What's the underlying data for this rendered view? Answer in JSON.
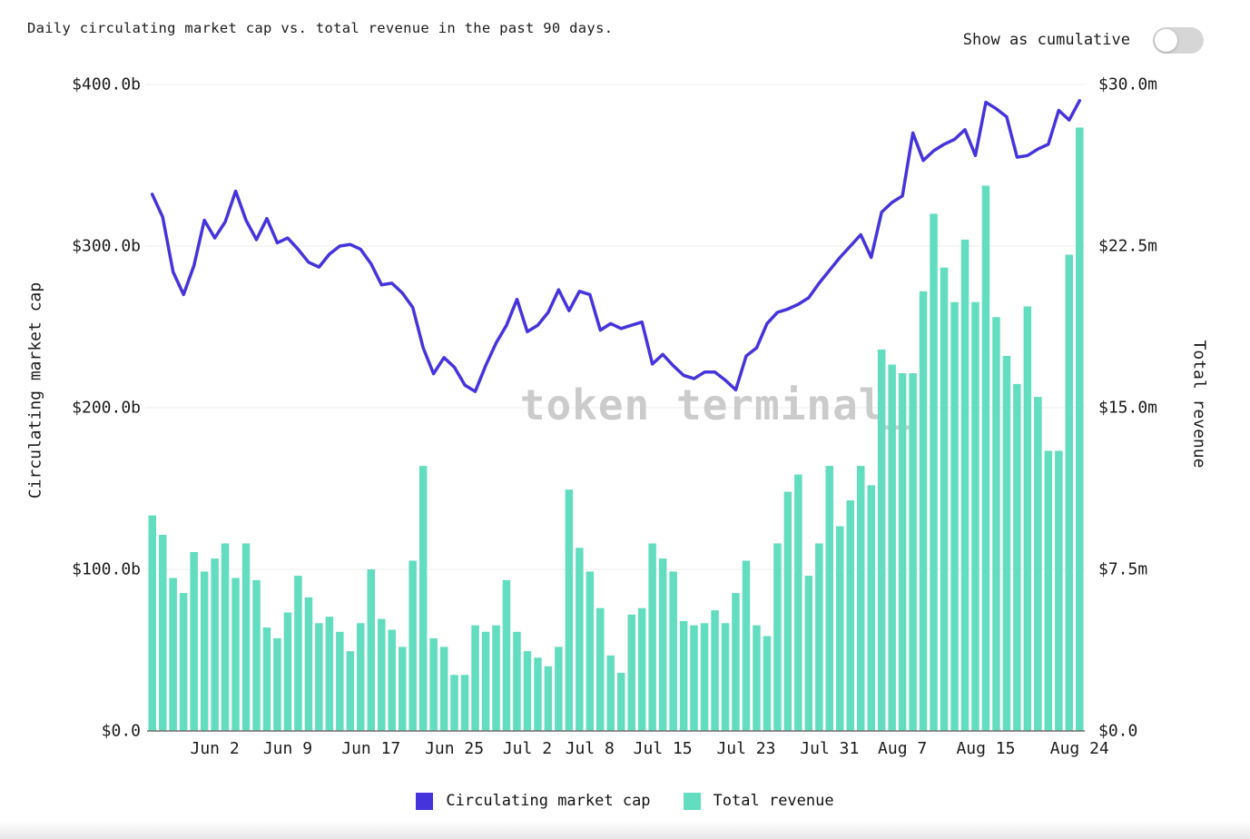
{
  "header": {
    "title": "Daily circulating market cap vs. total revenue in the past 90 days.",
    "toggle": {
      "label": "Show as cumulative",
      "state": "off"
    }
  },
  "watermark": "token terminal_",
  "colors": {
    "market_cap": "#4534dc",
    "revenue": "#62ddbf",
    "grid": "#ededed",
    "axis_line": "#6f6f6f",
    "watermark": "#cbcbcb",
    "text": "#1b1b1b",
    "toggle_bg": "#d6d6d6"
  },
  "chart_data": {
    "type": "combo-bar-line-dual-axis",
    "title": "Daily circulating market cap vs. total revenue in the past 90 days.",
    "grid": "horizontal",
    "legend_position": "bottom",
    "x": [
      "May 27",
      "May 28",
      "May 29",
      "May 30",
      "May 31",
      "Jun 1",
      "Jun 2",
      "Jun 3",
      "Jun 4",
      "Jun 5",
      "Jun 6",
      "Jun 7",
      "Jun 8",
      "Jun 9",
      "Jun 10",
      "Jun 11",
      "Jun 12",
      "Jun 13",
      "Jun 14",
      "Jun 15",
      "Jun 16",
      "Jun 17",
      "Jun 18",
      "Jun 19",
      "Jun 20",
      "Jun 21",
      "Jun 22",
      "Jun 23",
      "Jun 24",
      "Jun 25",
      "Jun 26",
      "Jun 27",
      "Jun 28",
      "Jun 29",
      "Jun 30",
      "Jul 1",
      "Jul 2",
      "Jul 3",
      "Jul 4",
      "Jul 5",
      "Jul 6",
      "Jul 7",
      "Jul 8",
      "Jul 9",
      "Jul 10",
      "Jul 11",
      "Jul 12",
      "Jul 13",
      "Jul 14",
      "Jul 15",
      "Jul 16",
      "Jul 17",
      "Jul 18",
      "Jul 19",
      "Jul 20",
      "Jul 21",
      "Jul 22",
      "Jul 23",
      "Jul 24",
      "Jul 25",
      "Jul 26",
      "Jul 27",
      "Jul 28",
      "Jul 29",
      "Jul 30",
      "Jul 31",
      "Aug 1",
      "Aug 2",
      "Aug 3",
      "Aug 4",
      "Aug 5",
      "Aug 6",
      "Aug 7",
      "Aug 8",
      "Aug 9",
      "Aug 10",
      "Aug 11",
      "Aug 12",
      "Aug 13",
      "Aug 14",
      "Aug 15",
      "Aug 16",
      "Aug 17",
      "Aug 18",
      "Aug 19",
      "Aug 20",
      "Aug 21",
      "Aug 22",
      "Aug 23",
      "Aug 24"
    ],
    "x_tick_labels": [
      {
        "label": "Jun 2",
        "index": 6
      },
      {
        "label": "Jun 9",
        "index": 13
      },
      {
        "label": "Jun 17",
        "index": 21
      },
      {
        "label": "Jun 25",
        "index": 29
      },
      {
        "label": "Jul 2",
        "index": 36
      },
      {
        "label": "Jul 8",
        "index": 42
      },
      {
        "label": "Jul 15",
        "index": 49
      },
      {
        "label": "Jul 23",
        "index": 57
      },
      {
        "label": "Jul 31",
        "index": 65
      },
      {
        "label": "Aug 7",
        "index": 72
      },
      {
        "label": "Aug 15",
        "index": 80
      },
      {
        "label": "Aug 24",
        "index": 89
      }
    ],
    "series": [
      {
        "name": "Circulating market cap",
        "type": "line",
        "axis": "left",
        "unit": "USD billions",
        "color": "#4534dc",
        "values": [
          332,
          318,
          284,
          270,
          288,
          316,
          305,
          315,
          334,
          316,
          304,
          317,
          302,
          305,
          298,
          290,
          287,
          295,
          300,
          301,
          298,
          289,
          276,
          277,
          271,
          262,
          237,
          221,
          231,
          225,
          214,
          210,
          226,
          240,
          251,
          267,
          247,
          251,
          259,
          273,
          260,
          272,
          270,
          248,
          252,
          249,
          251,
          253,
          227,
          233,
          226,
          220,
          218,
          222,
          222,
          217,
          211,
          232,
          237,
          252,
          259,
          261,
          264,
          268,
          277,
          285,
          293,
          300,
          307,
          293,
          321,
          327,
          331,
          370,
          353,
          359,
          363,
          366,
          372,
          356,
          389,
          385,
          380,
          355,
          356,
          360,
          363,
          384,
          378,
          390
        ]
      },
      {
        "name": "Total revenue",
        "type": "bar",
        "axis": "right",
        "unit": "USD millions",
        "color": "#62ddbf",
        "values": [
          10.0,
          9.1,
          7.1,
          6.4,
          8.3,
          7.4,
          8.0,
          8.7,
          7.1,
          8.7,
          7.0,
          4.8,
          4.3,
          5.5,
          7.2,
          6.2,
          5.0,
          5.3,
          4.6,
          3.7,
          5.0,
          7.5,
          5.2,
          4.7,
          3.9,
          7.9,
          12.3,
          4.3,
          3.9,
          2.6,
          2.6,
          4.9,
          4.6,
          4.9,
          7.0,
          4.6,
          3.7,
          3.4,
          3.0,
          3.9,
          11.2,
          8.5,
          7.4,
          5.7,
          3.5,
          2.7,
          5.4,
          5.7,
          8.7,
          8.0,
          7.4,
          5.1,
          4.9,
          5.0,
          5.6,
          5.0,
          6.4,
          7.9,
          4.9,
          4.4,
          8.7,
          11.1,
          11.9,
          7.2,
          8.7,
          12.3,
          9.5,
          10.7,
          12.3,
          11.4,
          17.7,
          17.0,
          16.6,
          16.6,
          20.4,
          24.0,
          21.5,
          19.9,
          22.8,
          19.9,
          25.3,
          19.2,
          17.4,
          16.1,
          19.7,
          15.5,
          13.0,
          13.0,
          22.1,
          28.0
        ]
      }
    ],
    "left_axis": {
      "title": "Circulating market cap",
      "ticks": [
        "$400.0b",
        "$300.0b",
        "$200.0b",
        "$100.0b",
        "$0.0"
      ],
      "min": 0,
      "max": 400
    },
    "right_axis": {
      "title": "Total revenue",
      "ticks": [
        "$30.0m",
        "$22.5m",
        "$15.0m",
        "$7.5m",
        "$0.0"
      ],
      "min": 0,
      "max": 30
    }
  },
  "legend": {
    "items": [
      {
        "label": "Circulating market cap",
        "color": "#4534dc"
      },
      {
        "label": "Total revenue",
        "color": "#62ddbf"
      }
    ]
  }
}
